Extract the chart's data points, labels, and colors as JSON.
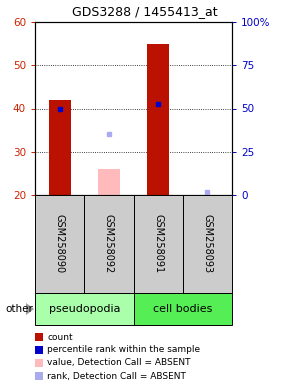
{
  "title": "GDS3288 / 1455413_at",
  "samples": [
    "GSM258090",
    "GSM258092",
    "GSM258091",
    "GSM258093"
  ],
  "groups": [
    {
      "label": "pseudopodia",
      "cols": [
        0,
        1
      ],
      "color": "#aaffaa"
    },
    {
      "label": "cell bodies",
      "cols": [
        2,
        3
      ],
      "color": "#55ee55"
    }
  ],
  "ylim_left": [
    20,
    60
  ],
  "ylim_right": [
    0,
    100
  ],
  "yticks_left": [
    20,
    30,
    40,
    50,
    60
  ],
  "yticks_right": [
    0,
    25,
    50,
    75,
    100
  ],
  "red_bars": [
    {
      "col": 0,
      "value": 42,
      "absent": false
    },
    {
      "col": 1,
      "value": 26,
      "absent": true
    },
    {
      "col": 2,
      "value": 55,
      "absent": false
    },
    {
      "col": 3,
      "value": null,
      "absent": true
    }
  ],
  "blue_squares": [
    {
      "col": 0,
      "value": 40,
      "absent": false
    },
    {
      "col": 1,
      "value": 34,
      "absent": true
    },
    {
      "col": 2,
      "value": 41,
      "absent": false
    },
    {
      "col": 3,
      "value": 20.8,
      "absent": true
    }
  ],
  "bar_width": 0.45,
  "bar_color_present": "#bb1100",
  "bar_color_absent": "#ffbbbb",
  "dot_color_present": "#0000cc",
  "dot_color_absent": "#aaaaee",
  "bg_color_plot": "#ffffff",
  "bg_color_sample": "#cccccc",
  "left_ylabel_color": "#cc2200",
  "right_ylabel_color": "#0000cc",
  "legend_items": [
    {
      "label": "count",
      "color": "#bb1100"
    },
    {
      "label": "percentile rank within the sample",
      "color": "#0000cc"
    },
    {
      "label": "value, Detection Call = ABSENT",
      "color": "#ffbbbb"
    },
    {
      "label": "rank, Detection Call = ABSENT",
      "color": "#aaaaee"
    }
  ]
}
